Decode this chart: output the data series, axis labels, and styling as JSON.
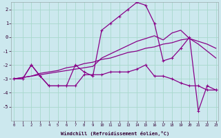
{
  "xlabel": "Windchill (Refroidissement éolien,°C)",
  "background_color": "#cce8ee",
  "grid_color": "#a8d8cc",
  "line_color": "#880088",
  "x_hours": [
    0,
    1,
    2,
    3,
    4,
    5,
    6,
    7,
    8,
    9,
    10,
    11,
    12,
    13,
    14,
    15,
    16,
    17,
    18,
    19,
    20,
    21,
    22,
    23
  ],
  "line_zigzag": [
    -3.0,
    -3.0,
    -2.0,
    -2.8,
    -3.5,
    -3.5,
    -3.5,
    -3.5,
    -2.7,
    -2.7,
    -2.7,
    -2.5,
    -2.5,
    -2.5,
    -2.3,
    -2.0,
    -2.8,
    -2.8,
    -3.0,
    -3.3,
    -3.5,
    -3.5,
    -3.8,
    -3.8
  ],
  "line_jagged": [
    -3.0,
    -3.0,
    -2.0,
    -2.8,
    -3.5,
    -3.5,
    -3.5,
    -2.0,
    -2.5,
    -2.8,
    0.5,
    1.0,
    1.5,
    2.0,
    2.5,
    2.3,
    1.0,
    -1.7,
    -1.5,
    -0.8,
    0.0,
    -5.3,
    -3.5,
    -3.8
  ],
  "line_trend1": [
    -3.0,
    -2.9,
    -2.8,
    -2.6,
    -2.5,
    -2.4,
    -2.2,
    -2.1,
    -1.9,
    -1.8,
    -1.6,
    -1.5,
    -1.3,
    -1.1,
    -1.0,
    -0.8,
    -0.7,
    -0.5,
    -0.4,
    -0.2,
    -0.1,
    -0.3,
    -0.5,
    -0.8
  ],
  "line_trend2": [
    -3.0,
    -2.9,
    -2.8,
    -2.7,
    -2.6,
    -2.5,
    -2.4,
    -2.3,
    -2.2,
    -2.1,
    -1.5,
    -1.2,
    -0.9,
    -0.6,
    -0.3,
    -0.1,
    0.1,
    -0.2,
    0.3,
    0.5,
    -0.1,
    -0.5,
    -1.0,
    -1.5
  ],
  "ylim": [
    -6.0,
    2.5
  ],
  "yticks": [
    -5,
    -4,
    -3,
    -2,
    -1,
    0,
    1,
    2
  ],
  "xlim": [
    -0.3,
    23.3
  ],
  "xticks": [
    0,
    1,
    2,
    3,
    4,
    5,
    6,
    7,
    8,
    9,
    10,
    11,
    12,
    13,
    14,
    15,
    16,
    17,
    18,
    19,
    20,
    21,
    22,
    23
  ]
}
